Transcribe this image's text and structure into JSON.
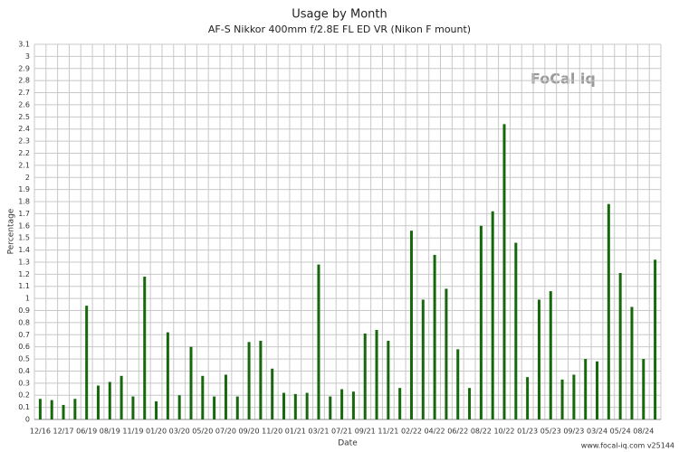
{
  "chart_data": {
    "type": "bar",
    "title": "Usage by Month",
    "subtitle": "AF-S Nikkor 400mm f/2.8E FL ED VR (Nikon F mount)",
    "x_label": "Date",
    "y_label": "Percentage",
    "logo": "FoCal iq",
    "footer": "www.focal-iq.com  v25144",
    "categories": [
      "12/16",
      null,
      "12/17",
      null,
      "06/19",
      null,
      "08/19",
      null,
      "11/19",
      null,
      "01/20",
      null,
      "03/20",
      null,
      "05/20",
      null,
      "07/20",
      null,
      "09/20",
      null,
      "11/20",
      null,
      "01/21",
      null,
      "03/21",
      null,
      "07/21",
      null,
      "09/21",
      null,
      "11/21",
      null,
      "02/22",
      null,
      "04/22",
      null,
      "06/22",
      null,
      "08/22",
      null,
      "10/22",
      null,
      "01/23",
      null,
      "05/23",
      null,
      "09/23",
      null,
      "03/24",
      null,
      "05/24",
      null,
      "08/24",
      null
    ],
    "values": [
      0.17,
      0.16,
      0.12,
      0.17,
      0.94,
      0.28,
      0.31,
      0.36,
      0.19,
      1.18,
      0.15,
      0.72,
      0.2,
      0.6,
      0.36,
      0.19,
      0.37,
      0.19,
      0.64,
      0.65,
      0.42,
      0.22,
      0.21,
      0.22,
      1.28,
      0.19,
      0.25,
      0.23,
      0.71,
      0.74,
      0.65,
      0.26,
      1.56,
      0.99,
      1.36,
      1.08,
      0.58,
      0.26,
      1.6,
      1.72,
      2.44,
      1.46,
      0.35,
      0.99,
      1.06,
      0.33,
      0.37,
      0.5,
      0.48,
      1.78,
      1.21,
      0.93,
      0.5,
      1.32
    ],
    "color": "#16690b",
    "ylim": [
      0,
      3.1
    ],
    "yticks": [
      0,
      0.1,
      0.2,
      0.3,
      0.4,
      0.5,
      0.6,
      0.7,
      0.8,
      0.9,
      1,
      1.1,
      1.2,
      1.3,
      1.4,
      1.5,
      1.6,
      1.7,
      1.8,
      1.9,
      2,
      2.1,
      2.2,
      2.3,
      2.4,
      2.5,
      2.6,
      2.7,
      2.8,
      2.9,
      3,
      3.1
    ],
    "grid": true
  }
}
